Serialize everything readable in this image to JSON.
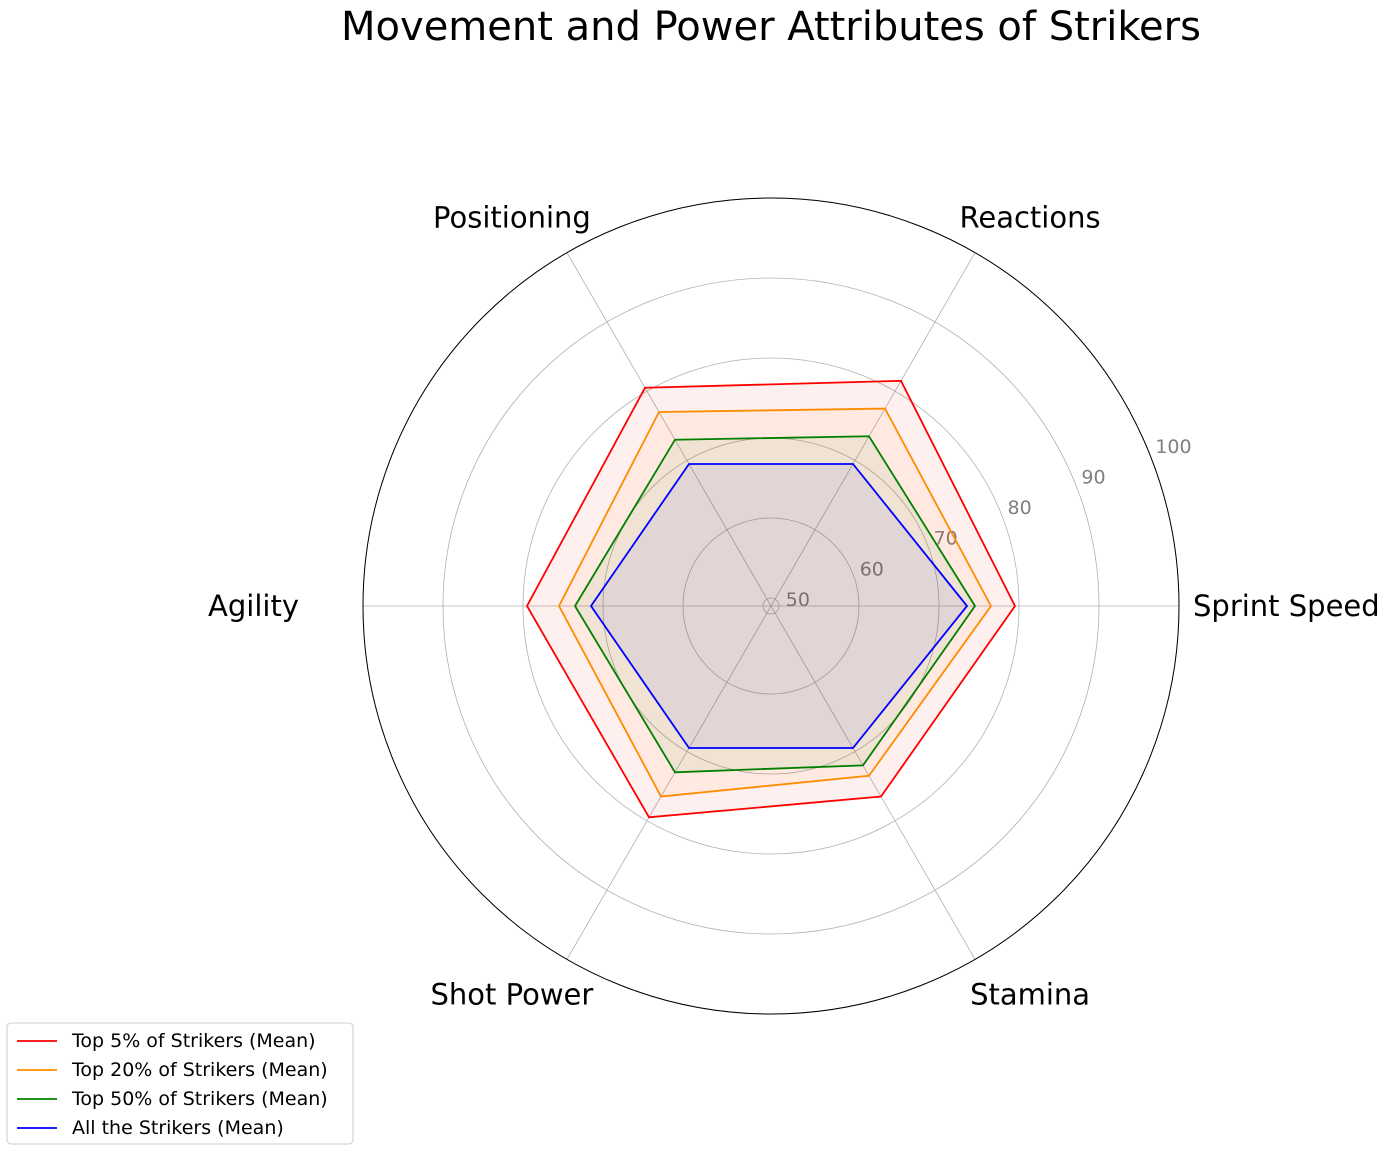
{
  "chart_data": {
    "type": "radar",
    "title": "Movement and Power Attributes of Strikers",
    "categories": [
      "Sprint Speed",
      "Reactions",
      "Positioning",
      "Agility",
      "Shot Power",
      "Stamina"
    ],
    "rlim": [
      49,
      100
    ],
    "rticks": [
      50,
      60,
      70,
      80,
      90,
      100
    ],
    "rtick_labels": [
      "50",
      "60",
      "70",
      "80",
      "90",
      "100"
    ],
    "grid": true,
    "legend_position": "bottom-left",
    "series": [
      {
        "name": "Top 5% of Strikers (Mean)",
        "color": "#ff0000",
        "fill": true,
        "values": [
          79.5,
          81.5,
          80.5,
          79.5,
          79.5,
          76.5
        ]
      },
      {
        "name": "Top 20% of Strikers (Mean)",
        "color": "#ff8c00",
        "fill": true,
        "values": [
          76.5,
          77.5,
          77.0,
          75.5,
          76.5,
          73.5
        ]
      },
      {
        "name": "Top 50% of Strikers (Mean)",
        "color": "#008000",
        "fill": true,
        "values": [
          74.5,
          73.5,
          73.0,
          73.5,
          73.0,
          72.0
        ]
      },
      {
        "name": "All the Strikers (Mean)",
        "color": "#0000ff",
        "fill": true,
        "values": [
          73.5,
          69.5,
          69.5,
          71.5,
          69.5,
          69.5
        ]
      }
    ]
  }
}
